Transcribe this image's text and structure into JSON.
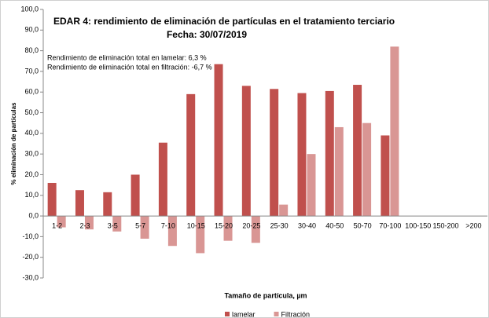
{
  "chart_data": {
    "type": "bar",
    "title": "EDAR 4: rendimiento de eliminación de  partículas en el tratamiento terciario",
    "subtitle": "Fecha: 30/07/2019",
    "annotations": [
      "Rendimiento de eliminación total en lamelar: 6,3 %",
      "Rendimiento de eliminación total en filtración: -6,7 %"
    ],
    "x_label": "Tamaño de partícula, µm",
    "y_label": "% eliminación de partículas",
    "categories": [
      "1-2",
      "2-3",
      "3-5",
      "5-7",
      "7-10",
      "10-15",
      "15-20",
      "20-25",
      "25-30",
      "30-40",
      "40-50",
      "50-70",
      "70-100",
      "100-150",
      "150-200",
      ">200"
    ],
    "series": [
      {
        "name": "lamelar",
        "color": "#c0504d",
        "values": [
          16,
          12.5,
          11.5,
          20,
          35.5,
          59,
          73.5,
          63,
          61.5,
          59.5,
          60.5,
          63.5,
          39,
          null,
          null,
          null
        ]
      },
      {
        "name": "Filtración",
        "color": "#d99694",
        "values": [
          -5.5,
          -6.5,
          -7.5,
          -11,
          -14.5,
          -18,
          -12,
          -13,
          5.5,
          30,
          43,
          45,
          82,
          null,
          null,
          null
        ]
      }
    ],
    "ylim": [
      -30,
      100
    ],
    "yticks": [
      {
        "value": -30,
        "label": "-30,0"
      },
      {
        "value": -20,
        "label": "-20,0"
      },
      {
        "value": -10,
        "label": "-10,0"
      },
      {
        "value": 0,
        "label": "0,0"
      },
      {
        "value": 10,
        "label": "10,0"
      },
      {
        "value": 20,
        "label": "20,0"
      },
      {
        "value": 30,
        "label": "30,0"
      },
      {
        "value": 40,
        "label": "40,0"
      },
      {
        "value": 50,
        "label": "50,0"
      },
      {
        "value": 60,
        "label": "60,0"
      },
      {
        "value": 70,
        "label": "70,0"
      },
      {
        "value": 80,
        "label": "80,0"
      },
      {
        "value": 90,
        "label": "90,0"
      },
      {
        "value": 100,
        "label": "100,0"
      }
    ],
    "grid": false,
    "legend": "bottom"
  }
}
